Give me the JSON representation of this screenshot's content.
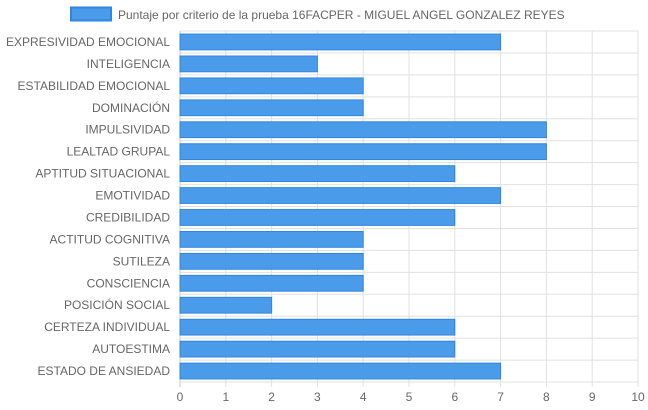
{
  "chart_data": {
    "type": "bar",
    "orientation": "horizontal",
    "categories": [
      "EXPRESIVIDAD EMOCIONAL",
      "INTELIGENCIA",
      "ESTABILIDAD EMOCIONAL",
      "DOMINACIÓN",
      "IMPULSIVIDAD",
      "LEALTAD GRUPAL",
      "APTITUD SITUACIONAL",
      "EMOTIVIDAD",
      "CREDIBILIDAD",
      "ACTITUD COGNITIVA",
      "SUTILEZA",
      "CONSCIENCIA",
      "POSICIÓN SOCIAL",
      "CERTEZA INDIVIDUAL",
      "AUTOESTIMA",
      "ESTADO DE ANSIEDAD"
    ],
    "series": [
      {
        "name": "Puntaje por criterio de la prueba 16FACPER - MIGUEL ANGEL GONZALEZ REYES",
        "values": [
          7,
          3,
          4,
          4,
          8,
          8,
          6,
          7,
          6,
          4,
          4,
          4,
          2,
          6,
          6,
          7
        ]
      }
    ],
    "xlim": [
      0,
      10
    ],
    "xticks": [
      "0",
      "1",
      "2",
      "3",
      "4",
      "5",
      "6",
      "7",
      "8",
      "9",
      "10"
    ],
    "grid": true,
    "legend_position": "top",
    "colors": {
      "bar_fill": "#4a9cea",
      "bar_border": "#2f86e0",
      "grid": "#e0e0e0",
      "axis": "#c8c8c8",
      "text": "#666666"
    }
  }
}
